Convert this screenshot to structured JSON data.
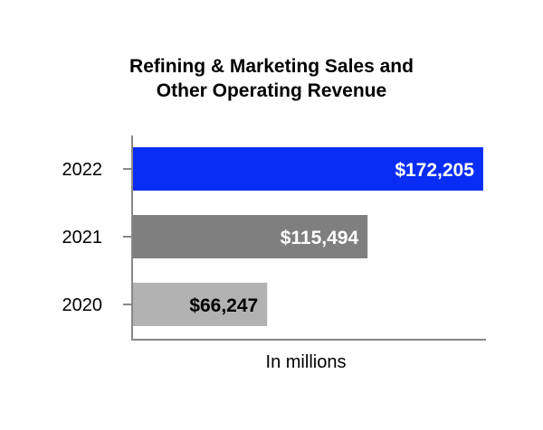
{
  "chart_data": {
    "type": "bar",
    "orientation": "horizontal",
    "title_lines": [
      "Refining & Marketing Sales and",
      "Other Operating Revenue"
    ],
    "categories": [
      "2022",
      "2021",
      "2020"
    ],
    "values": [
      172205,
      115494,
      66247
    ],
    "value_labels": [
      "$172,205",
      "$115,494",
      "$66,247"
    ],
    "bar_colors": [
      "#0a2df5",
      "#7f7f7f",
      "#b2b2b2"
    ],
    "label_colors": [
      "#ffffff",
      "#ffffff",
      "#000000"
    ],
    "xlabel": "In millions",
    "ylabel": "",
    "xlim": [
      0,
      182000
    ],
    "grid": false
  }
}
